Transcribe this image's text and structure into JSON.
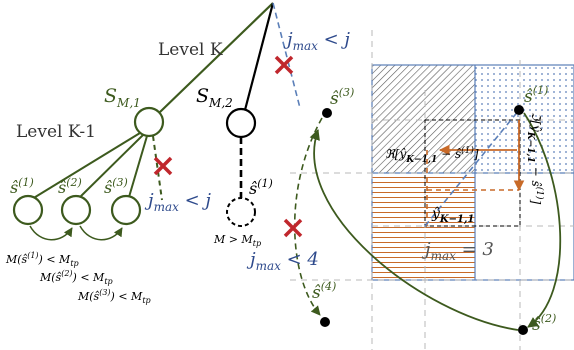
{
  "colors": {
    "green": "#3d5a1e",
    "black": "#000000",
    "blue": "#5b7fb8",
    "orange": "#c86a28",
    "red": "#c0272d",
    "grid": "#b8b8b8",
    "hatch": "#5a5a5a"
  },
  "labels": {
    "level_k": "Level K",
    "level_k1": "Level K-1",
    "s_m1": "S",
    "s_m1_sub": "M,1",
    "s_m2": "S",
    "s_m2_sub": "M,2",
    "jmax_top": "j",
    "jmax_top_sub": "max",
    "jmax_top_rest": " < j",
    "jmax_mid": "j",
    "jmax_mid_sub": "max",
    "jmax_mid_rest": " < j",
    "jmax_low": "j",
    "jmax_low_sub": "max",
    "jmax_low_rest": " < 4",
    "jmax_eq": "j",
    "jmax_eq_sub": "max",
    "jmax_eq_rest": " = 3",
    "shat": "ŝ",
    "sup1": "(1)",
    "sup2": "(2)",
    "sup3": "(3)",
    "sup4": "(4)",
    "m_gt": "M > M",
    "m_gt_sub": "tp",
    "cond1": "M(ŝ",
    "cond1_sup": "(1)",
    "cond1_rest": ") < M",
    "cond2": "M(ŝ",
    "cond2_sup": "(2)",
    "cond2_rest": ") < M",
    "cond3": "M(ŝ",
    "cond3_sup": "(3)",
    "cond3_rest": ") < M",
    "cond_sub": "tp",
    "re_expr": "ℜ[ŷ",
    "re_sub": "K−1,1",
    "re_rest": " − ŝ",
    "re_sup": "(1)",
    "re_end": "]",
    "im_expr": "ℑ[ŷ",
    "im_sub": "K−1,1",
    "im_rest": " − ŝ",
    "im_sup": "(1)",
    "im_end": "]",
    "y_hat": "ŷ",
    "y_sub": "K−1,1"
  }
}
